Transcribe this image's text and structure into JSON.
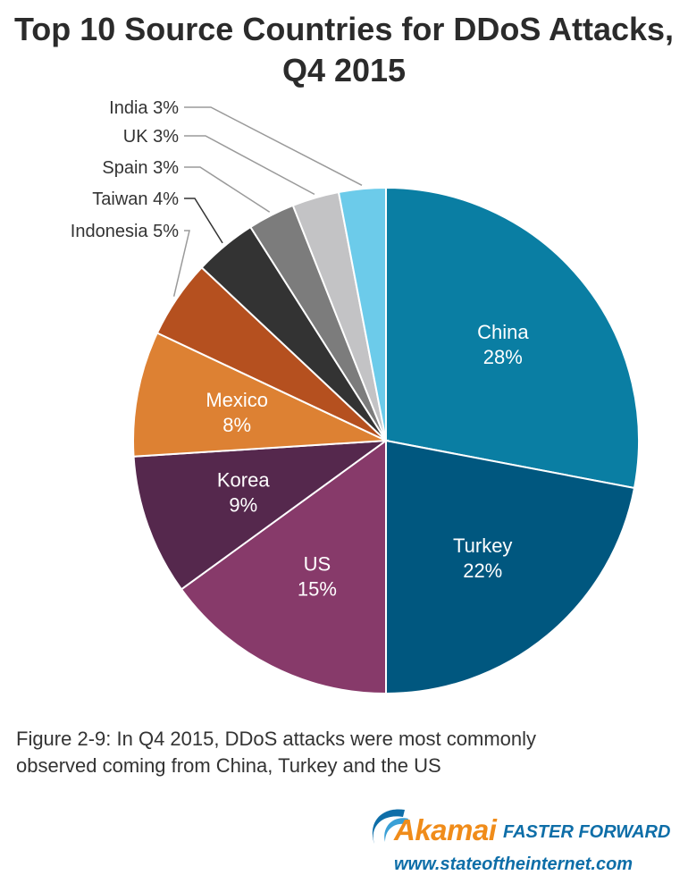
{
  "title_line1": "Top 10 Source Countries for DDoS Attacks,",
  "title_line2": "Q4 2015",
  "caption_line1": "Figure 2-9: In Q4 2015, DDoS attacks were most commonly",
  "caption_line2": "observed coming from China, Turkey and the US",
  "brand": {
    "logo": "Akamai",
    "tagline": "FASTER FORWARD",
    "url": "www.stateoftheinternet.com"
  },
  "chart_data": {
    "type": "pie",
    "title": "Top 10 Source Countries for DDoS Attacks, Q4 2015",
    "unit": "%",
    "slices": [
      {
        "label": "China",
        "value": 28,
        "color": "#0a7ea3",
        "label_style": "inside"
      },
      {
        "label": "Turkey",
        "value": 22,
        "color": "#00577f",
        "label_style": "inside"
      },
      {
        "label": "US",
        "value": 15,
        "color": "#873a6a",
        "label_style": "inside"
      },
      {
        "label": "Korea",
        "value": 9,
        "color": "#55284d",
        "label_style": "inside"
      },
      {
        "label": "Mexico",
        "value": 8,
        "color": "#dd8133",
        "label_style": "inside"
      },
      {
        "label": "Indonesia",
        "value": 5,
        "color": "#b5501f",
        "label_style": "outside"
      },
      {
        "label": "Taiwan",
        "value": 4,
        "color": "#333333",
        "label_style": "outside"
      },
      {
        "label": "Spain",
        "value": 3,
        "color": "#7c7c7c",
        "label_style": "outside"
      },
      {
        "label": "UK",
        "value": 3,
        "color": "#c3c3c5",
        "label_style": "outside"
      },
      {
        "label": "India",
        "value": 3,
        "color": "#6ccbea",
        "label_style": "outside"
      }
    ]
  }
}
